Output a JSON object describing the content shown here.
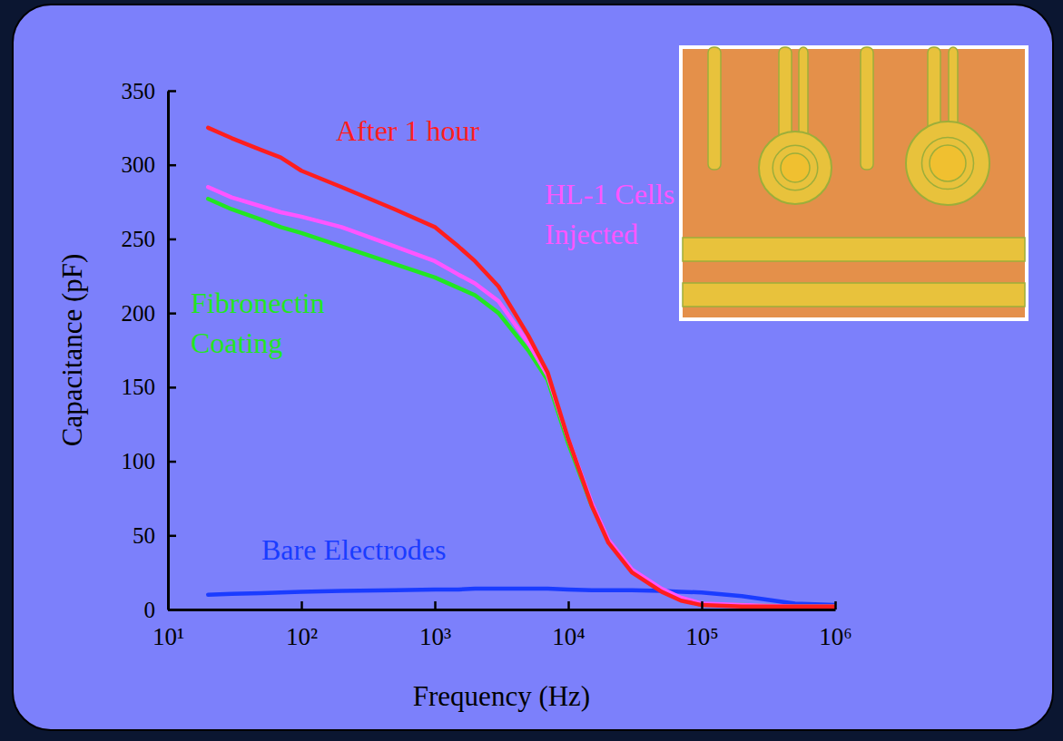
{
  "chart_data": {
    "type": "line",
    "xlabel": "Frequency (Hz)",
    "ylabel": "Capacitance (pF)",
    "log": "x",
    "grid": false,
    "xlim": [
      10,
      1000000
    ],
    "ylim": [
      0,
      350
    ],
    "xticks": [
      {
        "value": 10,
        "label": "10¹"
      },
      {
        "value": 100,
        "label": "10²"
      },
      {
        "value": 1000,
        "label": "10³"
      },
      {
        "value": 10000,
        "label": "10⁴"
      },
      {
        "value": 100000,
        "label": "10⁵"
      },
      {
        "value": 1000000,
        "label": "10⁶"
      }
    ],
    "yticks": [
      0,
      50,
      100,
      150,
      200,
      250,
      300,
      350
    ],
    "x": [
      20,
      30,
      50,
      70,
      100,
      200,
      500,
      1000,
      1500,
      2000,
      3000,
      5000,
      7000,
      10000,
      15000,
      20000,
      30000,
      50000,
      70000,
      100000,
      200000,
      500000,
      1000000
    ],
    "series": [
      {
        "name": "After 1 hour",
        "color": "#ff1e1e",
        "values": [
          325,
          318,
          310,
          305,
          296,
          285,
          270,
          258,
          245,
          235,
          218,
          185,
          160,
          115,
          70,
          45,
          25,
          12,
          6,
          3,
          2,
          2,
          2
        ]
      },
      {
        "name": "HL-1 Cells Injected",
        "color": "#ff55ff",
        "values": [
          285,
          278,
          272,
          268,
          265,
          258,
          245,
          235,
          226,
          220,
          208,
          180,
          158,
          115,
          72,
          47,
          27,
          14,
          8,
          4,
          3,
          2,
          2
        ]
      },
      {
        "name": "Fibronectin Coating",
        "color": "#22e622",
        "values": [
          277,
          270,
          263,
          258,
          254,
          245,
          233,
          224,
          217,
          212,
          200,
          175,
          155,
          112,
          70,
          46,
          26,
          13,
          7,
          3,
          3,
          2,
          2
        ]
      },
      {
        "name": "Bare Electrodes",
        "color": "#1a3cff",
        "values": [
          10,
          10.5,
          11,
          11.5,
          12,
          12.5,
          13,
          13.5,
          13.5,
          14,
          14,
          14,
          14,
          13.5,
          13,
          13,
          13,
          12.5,
          12,
          11.5,
          9,
          4,
          3
        ]
      }
    ]
  }
}
